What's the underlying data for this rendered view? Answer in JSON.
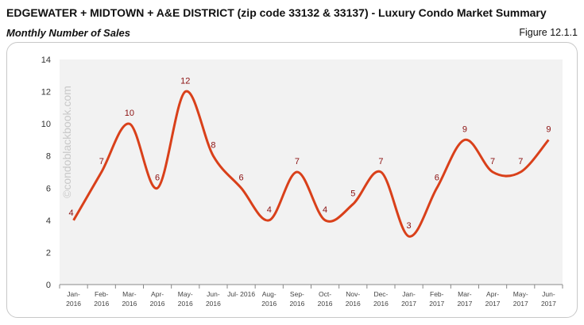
{
  "header": {
    "title": "EDGEWATER + MIDTOWN + A&E DISTRICT (zip code 33132 & 33137) - Luxury Condo Market Summary",
    "subtitle": "Monthly Number of Sales",
    "figure": "Figure 12.1.1"
  },
  "watermark": "©condoblackbook.com",
  "chart_data": {
    "type": "line",
    "categories": [
      [
        "Jan-",
        "2016"
      ],
      [
        "Feb-",
        "2016"
      ],
      [
        "Mar-",
        "2016"
      ],
      [
        "Apr-",
        "2016"
      ],
      [
        "May-",
        "2016"
      ],
      [
        "Jun-",
        "2016"
      ],
      [
        "Jul- 2016",
        ""
      ],
      [
        "Aug-",
        "2016"
      ],
      [
        "Sep-",
        "2016"
      ],
      [
        "Oct-",
        "2016"
      ],
      [
        "Nov-",
        "2016"
      ],
      [
        "Dec-",
        "2016"
      ],
      [
        "Jan-",
        "2017"
      ],
      [
        "Feb-",
        "2017"
      ],
      [
        "Mar-",
        "2017"
      ],
      [
        "Apr-",
        "2017"
      ],
      [
        "May-",
        "2017"
      ],
      [
        "Jun-",
        "2017"
      ]
    ],
    "values": [
      4,
      7,
      10,
      6,
      12,
      8,
      6,
      4,
      7,
      4,
      5,
      7,
      3,
      6,
      9,
      7,
      7,
      9
    ],
    "ylim": [
      0,
      14
    ],
    "yticks": [
      0,
      2,
      4,
      6,
      8,
      10,
      12,
      14
    ],
    "smooth": true,
    "data_labels": true,
    "grid": false,
    "colors": {
      "line": "#d9401a",
      "label": "#8b1010",
      "plot_bg": "#f2f2f2"
    }
  }
}
